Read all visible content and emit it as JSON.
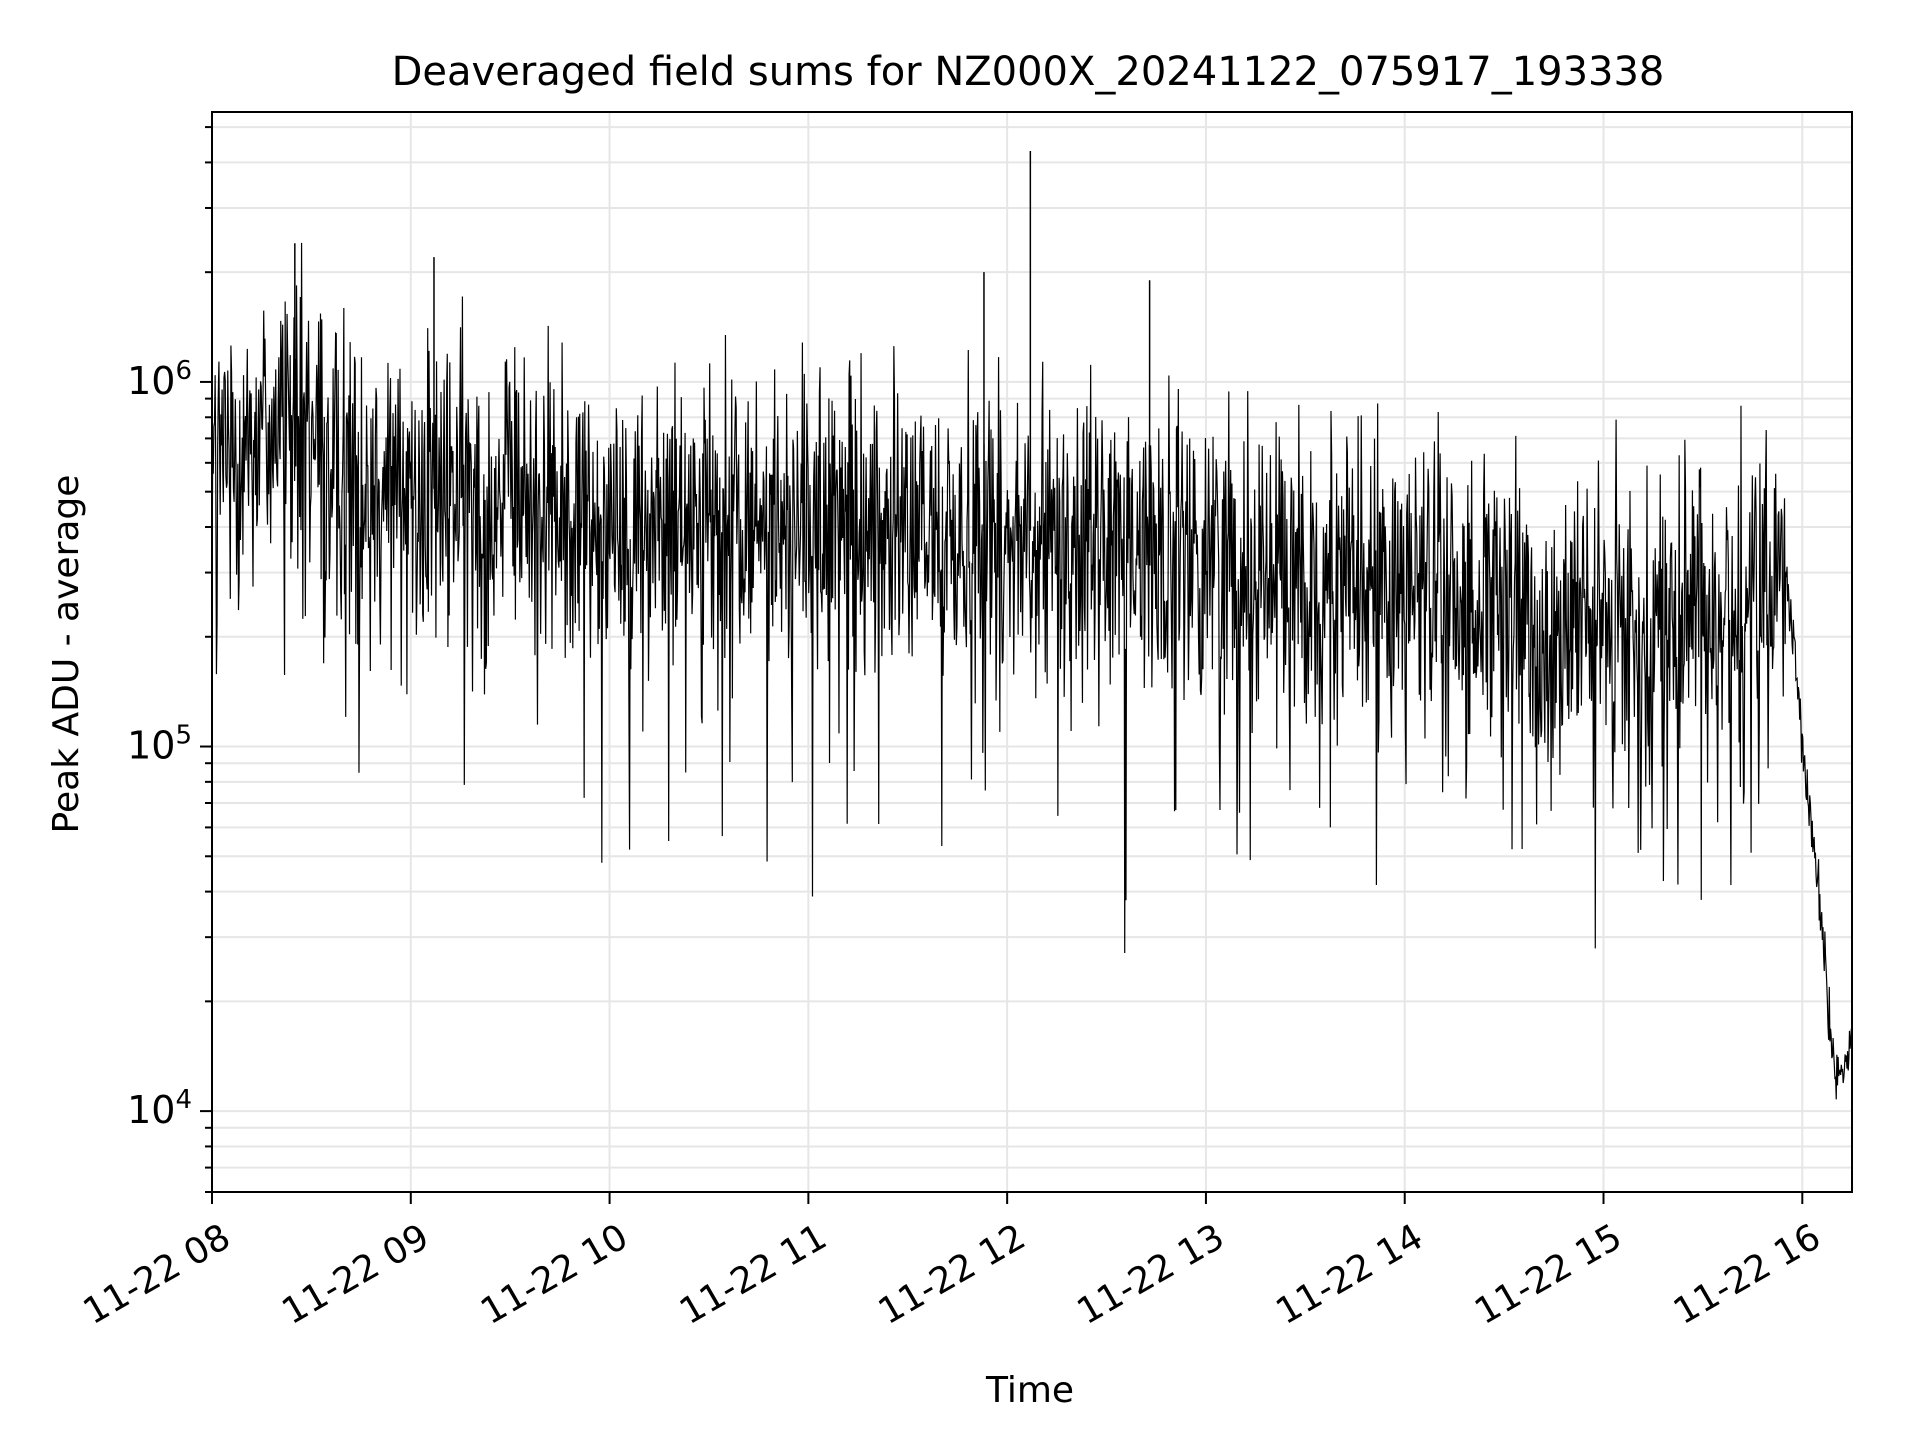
{
  "chart_data": {
    "type": "line",
    "title": "Deaveraged field sums for NZ000X_20241122_075917_193338",
    "xlabel": "Time",
    "ylabel": "Peak ADU - average",
    "xlim": [
      "2024-11-22 08:00",
      "2024-11-22 16:15"
    ],
    "xticks": [
      "11-22 08",
      "11-22 09",
      "11-22 10",
      "11-22 11",
      "11-22 12",
      "11-22 13",
      "11-22 14",
      "11-22 15",
      "11-22 16"
    ],
    "yscale": "log",
    "ylim": [
      6000,
      5500000
    ],
    "yticks": [
      10000,
      100000,
      1000000
    ],
    "ytick_labels": [
      {
        "base": "10",
        "exp": "4"
      },
      {
        "base": "10",
        "exp": "5"
      },
      {
        "base": "10",
        "exp": "6"
      }
    ],
    "grid": true,
    "line_color": "#000000",
    "grid_color": "#e6e6e6",
    "series": [
      {
        "x": [
          "2024-11-22 08:00",
          "2024-11-22 08:10",
          "2024-11-22 08:20",
          "2024-11-22 08:30",
          "2024-11-22 08:40",
          "2024-11-22 08:50",
          "2024-11-22 09:00",
          "2024-11-22 09:15",
          "2024-11-22 09:30",
          "2024-11-22 09:45",
          "2024-11-22 10:00",
          "2024-11-22 10:15",
          "2024-11-22 10:30",
          "2024-11-22 10:45",
          "2024-11-22 11:00",
          "2024-11-22 11:15",
          "2024-11-22 11:30",
          "2024-11-22 11:45",
          "2024-11-22 12:00",
          "2024-11-22 12:15",
          "2024-11-22 12:30",
          "2024-11-22 12:45",
          "2024-11-22 13:00",
          "2024-11-22 13:15",
          "2024-11-22 13:30",
          "2024-11-22 13:45",
          "2024-11-22 14:00",
          "2024-11-22 14:15",
          "2024-11-22 14:30",
          "2024-11-22 14:45",
          "2024-11-22 15:00",
          "2024-11-22 15:15",
          "2024-11-22 15:30",
          "2024-11-22 15:45",
          "2024-11-22 15:55",
          "2024-11-22 16:00",
          "2024-11-22 16:05",
          "2024-11-22 16:10",
          "2024-11-22 16:15"
        ],
        "y": [
          600000,
          700000,
          800000,
          700000,
          600000,
          550000,
          500000,
          520000,
          480000,
          450000,
          420000,
          430000,
          400000,
          410000,
          400000,
          400000,
          390000,
          380000,
          400000,
          380000,
          350000,
          360000,
          330000,
          320000,
          300000,
          280000,
          300000,
          250000,
          230000,
          210000,
          200000,
          220000,
          240000,
          260000,
          300000,
          100000,
          40000,
          12000,
          15000
        ]
      }
    ],
    "annotations_peaks": [
      {
        "x": "2024-11-22 08:25",
        "y": 2400000
      },
      {
        "x": "2024-11-22 09:07",
        "y": 2200000
      },
      {
        "x": "2024-11-22 12:07",
        "y": 4300000
      },
      {
        "x": "2024-11-22 11:53",
        "y": 2000000
      },
      {
        "x": "2024-11-22 12:43",
        "y": 1900000
      }
    ]
  }
}
